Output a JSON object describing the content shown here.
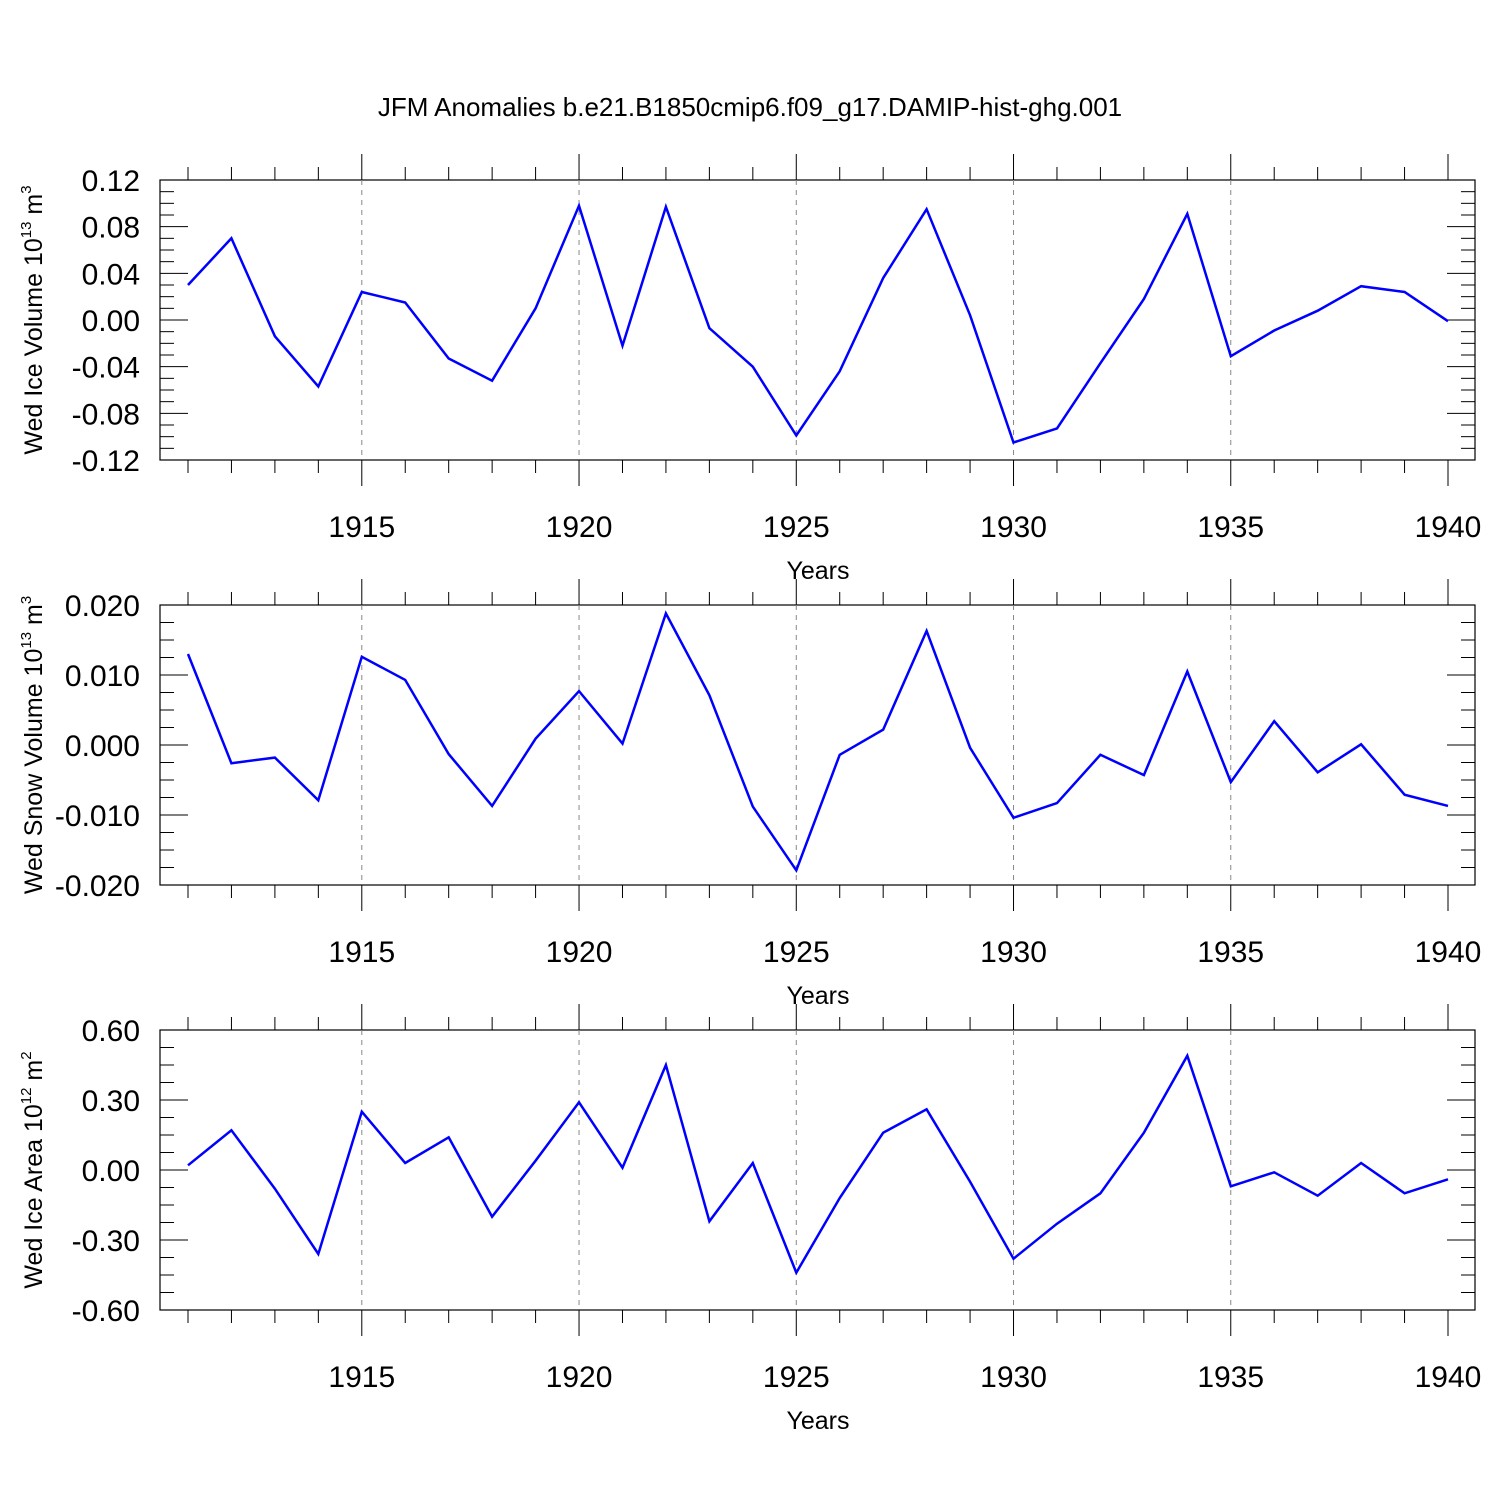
{
  "figure": {
    "title": "JFM Anomalies b.e21.B1850cmip6.f09_g17.DAMIP-hist-ghg.001",
    "line_color": "#0000ff"
  },
  "chart_data": [
    {
      "type": "line",
      "xlabel": "Years",
      "ylabel": {
        "prefix": "Wed Ice Volume 10",
        "exp": "13",
        "unit": " m",
        "unit_exp": "3"
      },
      "xlim": [
        1911,
        1940
      ],
      "ylim": [
        -0.12,
        0.12
      ],
      "yticks": [
        0.12,
        0.08,
        0.04,
        0.0,
        -0.04,
        -0.08,
        -0.12
      ],
      "ytick_labels": [
        "0.12",
        "0.08",
        "0.04",
        "0.00",
        "-0.04",
        "-0.08",
        "-0.12"
      ],
      "xticks": [
        1915,
        1920,
        1925,
        1930,
        1935,
        1940
      ],
      "xtick_labels": [
        "1915",
        "1920",
        "1925",
        "1930",
        "1935",
        "1940"
      ],
      "grid": "dashed vertical at major x ticks",
      "x": [
        1911,
        1912,
        1913,
        1914,
        1915,
        1916,
        1917,
        1918,
        1919,
        1920,
        1921,
        1922,
        1923,
        1924,
        1925,
        1926,
        1927,
        1928,
        1929,
        1930,
        1931,
        1932,
        1933,
        1934,
        1935,
        1936,
        1937,
        1938,
        1939,
        1940
      ],
      "values": [
        0.03,
        0.07,
        -0.014,
        -0.057,
        0.024,
        0.015,
        -0.033,
        -0.052,
        0.01,
        0.098,
        -0.022,
        0.097,
        -0.007,
        -0.04,
        -0.099,
        -0.044,
        0.036,
        0.095,
        0.004,
        -0.105,
        -0.093,
        -0.037,
        0.018,
        0.091,
        -0.031,
        -0.009,
        0.008,
        0.029,
        0.024,
        -0.001
      ]
    },
    {
      "type": "line",
      "xlabel": "Years",
      "ylabel": {
        "prefix": "Wed Snow Volume 10",
        "exp": "13",
        "unit": " m",
        "unit_exp": "3"
      },
      "xlim": [
        1911,
        1940
      ],
      "ylim": [
        -0.02,
        0.02
      ],
      "yticks": [
        0.02,
        0.01,
        0.0,
        -0.01,
        -0.02
      ],
      "ytick_labels": [
        "0.020",
        "0.010",
        "0.000",
        "-0.010",
        "-0.020"
      ],
      "xticks": [
        1915,
        1920,
        1925,
        1930,
        1935,
        1940
      ],
      "xtick_labels": [
        "1915",
        "1920",
        "1925",
        "1930",
        "1935",
        "1940"
      ],
      "grid": "dashed vertical at major x ticks",
      "x": [
        1911,
        1912,
        1913,
        1914,
        1915,
        1916,
        1917,
        1918,
        1919,
        1920,
        1921,
        1922,
        1923,
        1924,
        1925,
        1926,
        1927,
        1928,
        1929,
        1930,
        1931,
        1932,
        1933,
        1934,
        1935,
        1936,
        1937,
        1938,
        1939,
        1940
      ],
      "values": [
        0.013,
        -0.0026,
        -0.0018,
        -0.0079,
        0.0126,
        0.0093,
        -0.0013,
        -0.0087,
        0.0009,
        0.0077,
        0.0002,
        0.0188,
        0.0071,
        -0.0088,
        -0.0179,
        -0.0014,
        0.0022,
        0.0163,
        -0.0004,
        -0.0104,
        -0.0083,
        -0.0014,
        -0.0043,
        0.0105,
        -0.0053,
        0.0034,
        -0.0039,
        0.0001,
        -0.0071,
        -0.0087
      ]
    },
    {
      "type": "line",
      "xlabel": "Years",
      "ylabel": {
        "prefix": "Wed Ice Area 10",
        "exp": "12",
        "unit": " m",
        "unit_exp": "2"
      },
      "xlim": [
        1911,
        1940
      ],
      "ylim": [
        -0.6,
        0.6
      ],
      "yticks": [
        0.6,
        0.3,
        0.0,
        -0.3,
        -0.6
      ],
      "ytick_labels": [
        "0.60",
        "0.30",
        "0.00",
        "-0.30",
        "-0.60"
      ],
      "xticks": [
        1915,
        1920,
        1925,
        1930,
        1935,
        1940
      ],
      "xtick_labels": [
        "1915",
        "1920",
        "1925",
        "1930",
        "1935",
        "1940"
      ],
      "grid": "dashed vertical at major x ticks",
      "x": [
        1911,
        1912,
        1913,
        1914,
        1915,
        1916,
        1917,
        1918,
        1919,
        1920,
        1921,
        1922,
        1923,
        1924,
        1925,
        1926,
        1927,
        1928,
        1929,
        1930,
        1931,
        1932,
        1933,
        1934,
        1935,
        1936,
        1937,
        1938,
        1939,
        1940
      ],
      "values": [
        0.02,
        0.17,
        -0.08,
        -0.36,
        0.25,
        0.03,
        0.14,
        -0.2,
        0.04,
        0.29,
        0.01,
        0.45,
        -0.22,
        0.03,
        -0.44,
        -0.12,
        0.16,
        0.26,
        -0.05,
        -0.38,
        -0.23,
        -0.1,
        0.16,
        0.49,
        -0.07,
        -0.01,
        -0.11,
        0.03,
        -0.1,
        -0.04
      ]
    }
  ]
}
